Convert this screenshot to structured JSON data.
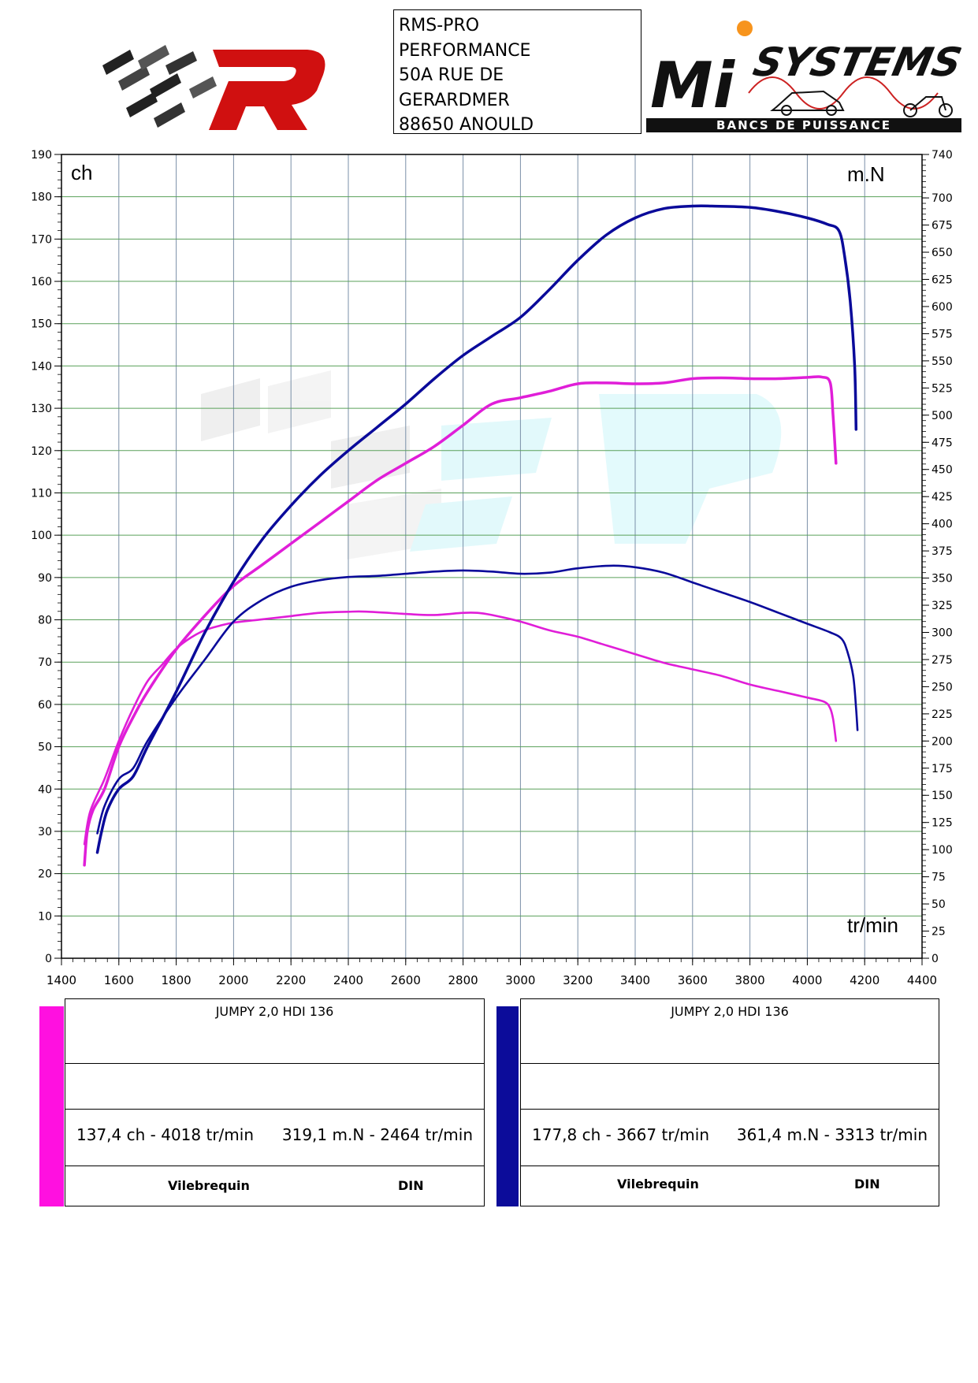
{
  "address": {
    "lines": [
      "RMS-PRO",
      "PERFORMANCE",
      "50A RUE DE",
      "GERARDMER",
      "88650 ANOULD"
    ]
  },
  "logos": {
    "left": "rms-pro-r-logo",
    "right": {
      "brand_text": "SYSTEMS",
      "letters": "Mi",
      "tagline": "BANCS DE PUISSANCE"
    }
  },
  "chart_data": {
    "type": "line",
    "x_unit_label": "tr/min",
    "y_left_label": "ch",
    "y_right_label": "m.N",
    "xlim": [
      1400,
      4400
    ],
    "x_ticks": [
      1400,
      1600,
      1800,
      2000,
      2200,
      2400,
      2600,
      2800,
      3000,
      3200,
      3400,
      3600,
      3800,
      4000,
      4200,
      4400
    ],
    "y_left_lim": [
      0,
      190
    ],
    "y_left_ticks": [
      0,
      10,
      20,
      30,
      40,
      50,
      60,
      70,
      80,
      90,
      100,
      110,
      120,
      130,
      140,
      150,
      160,
      170,
      180,
      190
    ],
    "y_right_lim": [
      0,
      740
    ],
    "y_right_ticks": [
      0,
      25,
      50,
      75,
      100,
      125,
      150,
      175,
      200,
      225,
      250,
      275,
      300,
      325,
      350,
      375,
      400,
      425,
      450,
      475,
      500,
      525,
      550,
      575,
      600,
      625,
      650,
      675,
      700,
      740
    ],
    "grid": true,
    "series": [
      {
        "color": "#e01ed8",
        "axis": "left",
        "quantity": "power",
        "points": [
          [
            1480,
            22
          ],
          [
            1490,
            30
          ],
          [
            1510,
            35
          ],
          [
            1550,
            40
          ],
          [
            1600,
            50
          ],
          [
            1650,
            57
          ],
          [
            1700,
            63
          ],
          [
            1800,
            73
          ],
          [
            1900,
            81
          ],
          [
            2000,
            88
          ],
          [
            2100,
            93
          ],
          [
            2200,
            98
          ],
          [
            2300,
            103
          ],
          [
            2400,
            108
          ],
          [
            2500,
            113
          ],
          [
            2600,
            117
          ],
          [
            2700,
            121
          ],
          [
            2800,
            126
          ],
          [
            2900,
            131
          ],
          [
            3000,
            132.5
          ],
          [
            3100,
            134
          ],
          [
            3200,
            135.8
          ],
          [
            3300,
            136
          ],
          [
            3400,
            135.8
          ],
          [
            3500,
            136
          ],
          [
            3600,
            137
          ],
          [
            3700,
            137.2
          ],
          [
            3800,
            137
          ],
          [
            3900,
            137
          ],
          [
            4000,
            137.3
          ],
          [
            4050,
            137.4
          ],
          [
            4080,
            136
          ],
          [
            4090,
            128
          ],
          [
            4100,
            117
          ]
        ]
      },
      {
        "color": "#e01ed8",
        "axis": "right",
        "quantity": "torque",
        "points": [
          [
            1480,
            105
          ],
          [
            1500,
            135
          ],
          [
            1550,
            165
          ],
          [
            1600,
            200
          ],
          [
            1650,
            230
          ],
          [
            1700,
            255
          ],
          [
            1750,
            270
          ],
          [
            1800,
            285
          ],
          [
            1850,
            295
          ],
          [
            1900,
            302
          ],
          [
            1950,
            306
          ],
          [
            2000,
            309
          ],
          [
            2100,
            312
          ],
          [
            2200,
            315
          ],
          [
            2300,
            318
          ],
          [
            2400,
            319
          ],
          [
            2464,
            319.1
          ],
          [
            2600,
            317
          ],
          [
            2700,
            316
          ],
          [
            2800,
            318
          ],
          [
            2850,
            318
          ],
          [
            2900,
            316
          ],
          [
            3000,
            310
          ],
          [
            3100,
            302
          ],
          [
            3200,
            296
          ],
          [
            3300,
            288
          ],
          [
            3400,
            280
          ],
          [
            3500,
            272
          ],
          [
            3600,
            266
          ],
          [
            3700,
            260
          ],
          [
            3800,
            252
          ],
          [
            3900,
            246
          ],
          [
            4000,
            240
          ],
          [
            4060,
            236
          ],
          [
            4080,
            230
          ],
          [
            4090,
            220
          ],
          [
            4100,
            200
          ]
        ]
      },
      {
        "color": "#0a0a9a",
        "axis": "left",
        "quantity": "power",
        "points": [
          [
            1525,
            25
          ],
          [
            1540,
            30
          ],
          [
            1560,
            35
          ],
          [
            1600,
            40
          ],
          [
            1650,
            43
          ],
          [
            1700,
            50
          ],
          [
            1800,
            63
          ],
          [
            1900,
            77
          ],
          [
            2000,
            89
          ],
          [
            2100,
            99
          ],
          [
            2200,
            107
          ],
          [
            2300,
            114
          ],
          [
            2400,
            120
          ],
          [
            2500,
            125.5
          ],
          [
            2600,
            131
          ],
          [
            2700,
            137
          ],
          [
            2800,
            142.5
          ],
          [
            2900,
            147
          ],
          [
            3000,
            151.5
          ],
          [
            3100,
            158
          ],
          [
            3200,
            165
          ],
          [
            3300,
            171
          ],
          [
            3400,
            175
          ],
          [
            3500,
            177.2
          ],
          [
            3600,
            177.8
          ],
          [
            3667,
            177.8
          ],
          [
            3800,
            177.5
          ],
          [
            3900,
            176.5
          ],
          [
            4000,
            175
          ],
          [
            4070,
            173.5
          ],
          [
            4110,
            172
          ],
          [
            4130,
            166
          ],
          [
            4150,
            155
          ],
          [
            4165,
            140
          ],
          [
            4170,
            125
          ]
        ]
      },
      {
        "color": "#0a0a9a",
        "axis": "right",
        "quantity": "torque",
        "points": [
          [
            1525,
            115
          ],
          [
            1550,
            140
          ],
          [
            1600,
            165
          ],
          [
            1650,
            175
          ],
          [
            1700,
            200
          ],
          [
            1800,
            240
          ],
          [
            1900,
            275
          ],
          [
            2000,
            310
          ],
          [
            2100,
            330
          ],
          [
            2200,
            342
          ],
          [
            2300,
            348
          ],
          [
            2400,
            351
          ],
          [
            2500,
            352
          ],
          [
            2600,
            354
          ],
          [
            2700,
            356
          ],
          [
            2800,
            357
          ],
          [
            2900,
            356
          ],
          [
            3000,
            354
          ],
          [
            3100,
            355
          ],
          [
            3200,
            359
          ],
          [
            3313,
            361.4
          ],
          [
            3400,
            360
          ],
          [
            3500,
            355
          ],
          [
            3600,
            346
          ],
          [
            3700,
            337
          ],
          [
            3800,
            328
          ],
          [
            3900,
            318
          ],
          [
            4000,
            308
          ],
          [
            4080,
            300
          ],
          [
            4120,
            294
          ],
          [
            4140,
            282
          ],
          [
            4160,
            260
          ],
          [
            4170,
            230
          ],
          [
            4175,
            210
          ]
        ]
      }
    ]
  },
  "legends": [
    {
      "color": "#ff10e0",
      "title": "JUMPY 2,0 HDI 136",
      "power_stat": "137,4 ch - 4018 tr/min",
      "torque_stat": "319,1 m.N - 2464 tr/min",
      "foot_left": "Vilebrequin",
      "foot_right": "DIN"
    },
    {
      "color": "#0c0c9a",
      "title": "JUMPY 2,0 HDI 136",
      "power_stat": "177,8 ch - 3667 tr/min",
      "torque_stat": "361,4 m.N - 3313 tr/min",
      "foot_left": "Vilebrequin",
      "foot_right": "DIN"
    }
  ]
}
